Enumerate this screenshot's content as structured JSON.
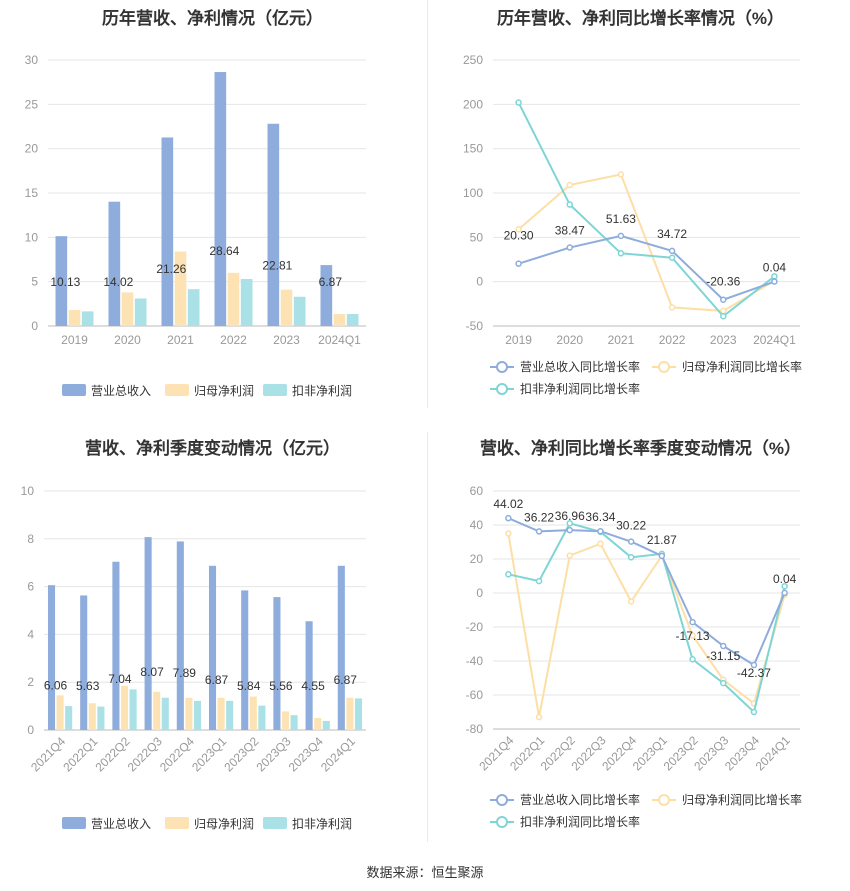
{
  "source": "数据来源：恒生聚源",
  "colors": {
    "revenue": "#8eacdc",
    "parent": "#fde3b4",
    "deducted": "#a9e1e6",
    "revenueLine": "#8eacdc",
    "parentLine": "#fddfa6",
    "deductedLine": "#7fd5d6",
    "grid": "#e6e6e6",
    "axis": "#999999",
    "text": "#333333"
  },
  "chart_data": [
    {
      "type": "bar",
      "title": "历年营收、净利情况（亿元）",
      "categories": [
        "2019",
        "2020",
        "2021",
        "2022",
        "2023",
        "2024Q1"
      ],
      "ylim": [
        0,
        30
      ],
      "yticks": [
        0,
        5,
        10,
        15,
        20,
        25,
        30
      ],
      "series": [
        {
          "name": "营业总收入",
          "values": [
            10.13,
            14.02,
            21.26,
            28.64,
            22.81,
            6.87
          ],
          "labels": [
            "10.13",
            "14.02",
            "21.26",
            "28.64",
            "22.81",
            "6.87"
          ]
        },
        {
          "name": "归母净利润",
          "values": [
            1.8,
            3.8,
            8.4,
            6.0,
            4.1,
            1.35
          ]
        },
        {
          "name": "扣非净利润",
          "values": [
            1.65,
            3.1,
            4.15,
            5.3,
            3.3,
            1.35
          ]
        }
      ]
    },
    {
      "type": "line",
      "title": "历年营收、净利同比增长率情况（%）",
      "categories": [
        "2019",
        "2020",
        "2021",
        "2022",
        "2023",
        "2024Q1"
      ],
      "ylim": [
        -50,
        250
      ],
      "yticks": [
        -50,
        0,
        50,
        100,
        150,
        200,
        250
      ],
      "series": [
        {
          "name": "营业总收入同比增长率",
          "values": [
            20.3,
            38.47,
            51.63,
            34.72,
            -20.36,
            0.04
          ],
          "labels": [
            "20.30",
            "38.47",
            "51.63",
            "34.72",
            "-20.36",
            "0.04"
          ]
        },
        {
          "name": "归母净利润同比增长率",
          "values": [
            59,
            109,
            121,
            -29,
            -33,
            1
          ]
        },
        {
          "name": "扣非净利润同比增长率",
          "values": [
            202,
            87,
            32,
            27,
            -39,
            6
          ]
        }
      ]
    },
    {
      "type": "bar",
      "title": "营收、净利季度变动情况（亿元）",
      "categories": [
        "2021Q4",
        "2022Q1",
        "2022Q2",
        "2022Q3",
        "2022Q4",
        "2023Q1",
        "2023Q2",
        "2023Q3",
        "2023Q4",
        "2024Q1"
      ],
      "ylim": [
        0,
        10
      ],
      "yticks": [
        0,
        2,
        4,
        6,
        8,
        10
      ],
      "series": [
        {
          "name": "营业总收入",
          "values": [
            6.06,
            5.63,
            7.04,
            8.07,
            7.89,
            6.87,
            5.84,
            5.56,
            4.55,
            6.87
          ],
          "labels": [
            "6.06",
            "5.63",
            "7.04",
            "8.07",
            "7.89",
            "6.87",
            "5.84",
            "5.56",
            "4.55",
            "6.87"
          ]
        },
        {
          "name": "归母净利润",
          "values": [
            1.45,
            1.12,
            1.85,
            1.6,
            1.35,
            1.35,
            1.4,
            0.78,
            0.5,
            1.35
          ]
        },
        {
          "name": "扣非净利润",
          "values": [
            1.0,
            0.98,
            1.7,
            1.35,
            1.22,
            1.22,
            1.02,
            0.62,
            0.38,
            1.32
          ]
        }
      ]
    },
    {
      "type": "line",
      "title": "营收、净利同比增长率季度变动情况（%）",
      "categories": [
        "2021Q4",
        "2022Q1",
        "2022Q2",
        "2022Q3",
        "2022Q4",
        "2023Q1",
        "2023Q2",
        "2023Q3",
        "2023Q4",
        "2024Q1"
      ],
      "ylim": [
        -80,
        60
      ],
      "yticks": [
        -80,
        -60,
        -40,
        -20,
        0,
        20,
        40,
        60
      ],
      "series": [
        {
          "name": "营业总收入同比增长率",
          "values": [
            44.02,
            36.22,
            36.96,
            36.34,
            30.22,
            21.87,
            -17.13,
            -31.15,
            -42.37,
            0.04
          ],
          "labels": [
            "44.02",
            "36.22",
            "36.96",
            "36.34",
            "30.22",
            "21.87",
            "-17.13",
            "-31.15",
            "-42.37",
            "0.04"
          ]
        },
        {
          "name": "归母净利润同比增长率",
          "values": [
            35,
            -73,
            22,
            29,
            -5,
            22,
            -25,
            -51,
            -65,
            -1
          ]
        },
        {
          "name": "扣非净利润同比增长率",
          "values": [
            11,
            7,
            41,
            36,
            21,
            23,
            -39,
            -53,
            -70,
            4
          ]
        }
      ]
    }
  ]
}
